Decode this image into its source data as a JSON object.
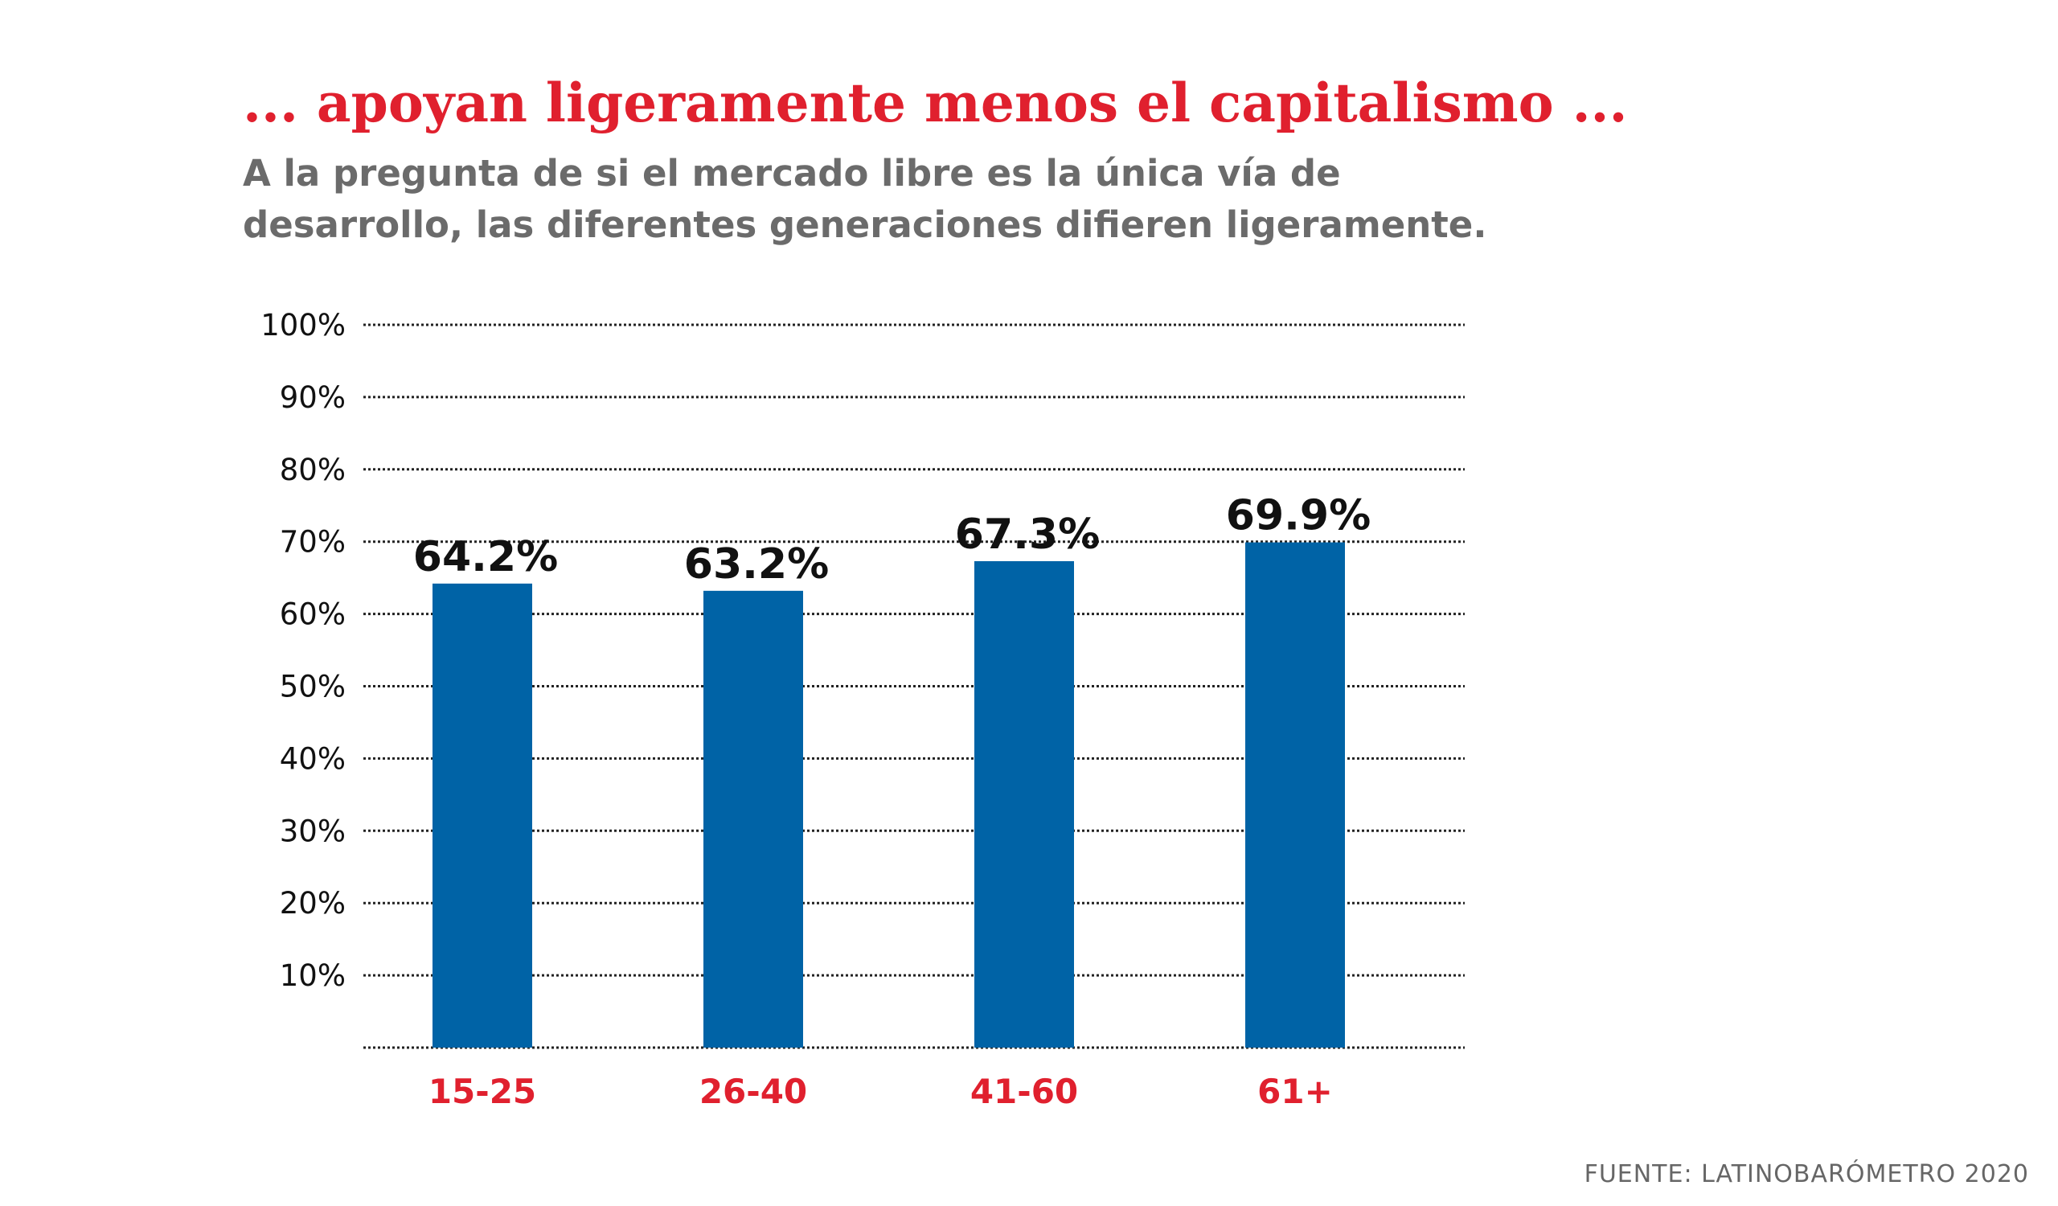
{
  "colors": {
    "accent": "#e0202e",
    "subtitle": "#6b6b6b",
    "bar": "#0063a6",
    "text": "#111111",
    "grid": "#222222",
    "source": "#666666"
  },
  "header": {
    "title": "... apoyan ligeramente menos el capitalismo ...",
    "subtitle": "A la pregunta de si el mercado libre es la única vía de desarrollo, las diferentes generaciones difieren ligeramente."
  },
  "footer": {
    "source": "FUENTE: LATINOBARÓMETRO 2020"
  },
  "chart_data": {
    "type": "bar",
    "categories": [
      "15-25",
      "26-40",
      "41-60",
      "61+"
    ],
    "values": [
      64.2,
      63.2,
      67.3,
      69.9
    ],
    "value_labels": [
      "64.2%",
      "63.2%",
      "67.3%",
      "69.9%"
    ],
    "ylim": [
      0,
      100
    ],
    "yticks": [
      10,
      20,
      30,
      40,
      50,
      60,
      70,
      80,
      90,
      100
    ],
    "ytick_labels": [
      "10%",
      "20%",
      "30%",
      "40%",
      "50%",
      "60%",
      "70%",
      "80%",
      "90%",
      "100%"
    ],
    "grid": true,
    "legend": "none"
  }
}
